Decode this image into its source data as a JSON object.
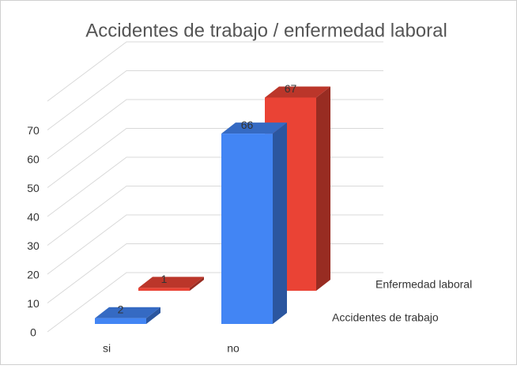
{
  "chart_data": {
    "type": "bar3d",
    "title": "Accidentes de trabajo / enfermedad laboral",
    "categories": [
      "si",
      "no"
    ],
    "series": [
      {
        "name": "Accidentes de trabajo",
        "color": "#4285f4",
        "values": [
          2,
          66
        ]
      },
      {
        "name": "Enfermedad laboral",
        "color": "#ea4335",
        "values": [
          1,
          67
        ]
      }
    ],
    "ylim": [
      0,
      80
    ],
    "yticks": [
      0,
      10,
      20,
      30,
      40,
      50,
      60,
      70
    ],
    "grid": true
  }
}
